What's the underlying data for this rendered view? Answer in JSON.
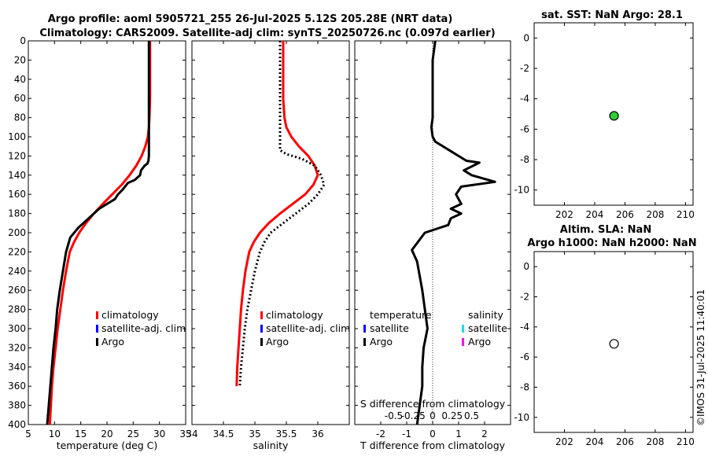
{
  "figure": {
    "title_line1": "Argo profile: aoml 5905721_255 26-Jul-2025 5.12S 205.28E (NRT data)",
    "title_line2": "Climatology: CARS2009. Satellite-adj clim: synTS_20250726.nc (0.097d earlier)",
    "side_label": "©IMOS 31-Jul-2025 11:40:01"
  },
  "colors": {
    "climatology": "#ff0000",
    "satellite_adj": "#0000ff",
    "argo": "#000000",
    "satellite_salinity": "#00e5ee",
    "argo_salinity": "#ff00ff",
    "sst_marker": "#33cc33"
  },
  "chart_data": [
    {
      "id": "temperature",
      "type": "line",
      "xlabel": "temperature (deg C)",
      "xlim": [
        5,
        35
      ],
      "xticks": [
        5,
        10,
        15,
        20,
        25,
        30,
        35
      ],
      "ylim": [
        0,
        400
      ],
      "yticks": [
        0,
        20,
        40,
        60,
        80,
        100,
        120,
        140,
        160,
        180,
        200,
        220,
        240,
        260,
        280,
        300,
        320,
        340,
        360,
        380,
        400
      ],
      "legend": [
        "climatology",
        "satellite-adj. clim",
        "Argo"
      ],
      "series": [
        {
          "name": "climatology",
          "style": "red",
          "x": [
            28.2,
            28.2,
            28.1,
            28.0,
            27.8,
            27.3,
            26.6,
            25.6,
            24.3,
            22.8,
            21.0,
            19.2,
            17.5,
            16.0,
            14.7,
            13.7,
            12.9,
            12.2,
            11.6,
            11.1,
            10.6,
            10.2,
            9.8,
            9.5,
            9.3,
            9.1
          ],
          "y": [
            0,
            60,
            80,
            90,
            100,
            110,
            120,
            130,
            140,
            150,
            160,
            170,
            180,
            190,
            200,
            210,
            220,
            240,
            260,
            280,
            300,
            320,
            340,
            360,
            380,
            400
          ]
        },
        {
          "name": "Argo",
          "style": "black",
          "x": [
            28.0,
            28.0,
            28.0,
            28.0,
            27.9,
            27.7,
            27.2,
            26.5,
            26.3,
            25.3,
            24.0,
            23.0,
            22.1,
            21.5,
            20.0,
            18.5,
            16.5,
            14.5,
            13.0,
            12.2,
            11.6,
            11.0,
            10.5,
            10.2,
            9.8,
            9.5,
            9.2,
            8.9,
            8.6
          ],
          "y": [
            0,
            50,
            100,
            120,
            125,
            128,
            130,
            135,
            140,
            145,
            148,
            155,
            160,
            165,
            170,
            175,
            185,
            195,
            205,
            220,
            240,
            260,
            280,
            300,
            320,
            340,
            360,
            380,
            400
          ]
        }
      ]
    },
    {
      "id": "salinity",
      "type": "line",
      "xlabel": "salinity",
      "xlim": [
        34,
        36.5
      ],
      "xticks": [
        34,
        34.5,
        35,
        35.5,
        36
      ],
      "ylim": [
        0,
        400
      ],
      "legend": [
        "climatology",
        "satellite-adj. clim",
        "Argo"
      ],
      "series": [
        {
          "name": "climatology",
          "style": "red",
          "x": [
            35.45,
            35.45,
            35.47,
            35.5,
            35.58,
            35.7,
            35.85,
            35.95,
            36.0,
            35.93,
            35.8,
            35.6,
            35.4,
            35.22,
            35.08,
            34.98,
            34.91,
            34.85,
            34.81,
            34.78,
            34.76,
            34.74,
            34.72,
            34.71
          ],
          "y": [
            0,
            60,
            80,
            90,
            100,
            110,
            120,
            130,
            140,
            150,
            160,
            170,
            180,
            190,
            200,
            210,
            220,
            240,
            260,
            280,
            300,
            320,
            340,
            360
          ]
        },
        {
          "name": "Argo",
          "style": "dotted-black",
          "x": [
            35.4,
            35.4,
            35.4,
            35.4,
            35.5,
            35.75,
            35.95,
            36.05,
            36.1,
            36.0,
            35.85,
            35.65,
            35.45,
            35.25,
            35.15,
            35.08,
            35.0,
            34.94,
            34.88,
            34.84,
            34.81,
            34.78,
            34.76
          ],
          "y": [
            0,
            60,
            100,
            114,
            118,
            123,
            130,
            140,
            150,
            160,
            170,
            180,
            190,
            200,
            210,
            220,
            240,
            260,
            280,
            300,
            320,
            340,
            360
          ]
        }
      ]
    },
    {
      "id": "difference",
      "type": "line",
      "xlabel": "T difference from climatology",
      "xlabel_top": "S difference from climatology",
      "xlim": [
        -3,
        3
      ],
      "xticks": [
        -2,
        -1,
        0,
        1,
        2
      ],
      "s_ticks": [
        -0.5,
        -0.25,
        0,
        0.25,
        0.5
      ],
      "s_tick_labels": [
        "-0.5",
        "-0.25",
        "0",
        "0.25",
        "0.5"
      ],
      "ylim": [
        0,
        400
      ],
      "legend_left_title": "temperature",
      "legend_right_title": "salinity",
      "legend_items": [
        "satellite",
        "Argo",
        "satellite",
        "Argo"
      ],
      "series": [
        {
          "name": "T difference (Argo)",
          "style": "black",
          "x": [
            0.1,
            0.0,
            0.0,
            -0.05,
            0.0,
            0.1,
            0.7,
            1.3,
            1.8,
            1.2,
            1.5,
            2.4,
            1.1,
            0.9,
            1.1,
            0.7,
            1.1,
            0.7,
            0.6,
            -0.3,
            -0.8,
            -0.6,
            -0.4,
            -0.3,
            -0.2,
            -0.35,
            -0.4,
            -0.4,
            -0.5,
            -0.6
          ],
          "y": [
            0,
            20,
            80,
            90,
            100,
            105,
            115,
            125,
            127,
            135,
            140,
            147,
            152,
            160,
            170,
            175,
            180,
            185,
            192,
            200,
            218,
            230,
            260,
            280,
            300,
            320,
            340,
            360,
            380,
            400
          ]
        }
      ]
    },
    {
      "id": "sst_map",
      "type": "scatter",
      "title": "sat. SST: NaN Argo: 28.1",
      "xlim": [
        200,
        210.5
      ],
      "xticks": [
        202,
        204,
        206,
        208,
        210
      ],
      "ylim": [
        -11,
        1
      ],
      "yticks": [
        0,
        -2,
        -4,
        -6,
        -8,
        -10
      ],
      "points": [
        {
          "x": 205.28,
          "y": -5.12,
          "fill": "green"
        }
      ]
    },
    {
      "id": "sla_map",
      "type": "scatter",
      "title_line1": "Altim. SLA: NaN",
      "title_line2": "Argo h1000: NaN h2000: NaN",
      "xlim": [
        200,
        210.5
      ],
      "xticks": [
        202,
        204,
        206,
        208,
        210
      ],
      "ylim": [
        -11,
        1
      ],
      "yticks": [
        0,
        -2,
        -4,
        -6,
        -8,
        -10
      ],
      "points": [
        {
          "x": 205.28,
          "y": -5.12,
          "fill": "white"
        }
      ]
    }
  ]
}
